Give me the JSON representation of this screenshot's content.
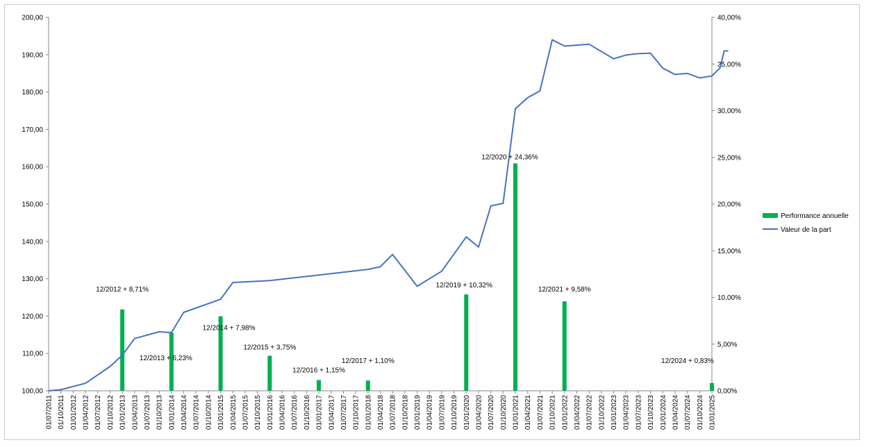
{
  "chart_data": {
    "type": "bar+line",
    "x_labels": [
      "01/07/2011",
      "01/10/2011",
      "01/01/2012",
      "01/04/2012",
      "01/07/2012",
      "01/10/2012",
      "01/01/2013",
      "01/04/2013",
      "01/07/2013",
      "01/10/2013",
      "01/01/2014",
      "01/04/2014",
      "01/07/2014",
      "01/10/2014",
      "01/01/2015",
      "01/04/2015",
      "01/07/2015",
      "01/10/2015",
      "01/01/2016",
      "01/04/2016",
      "01/07/2016",
      "01/10/2016",
      "01/01/2017",
      "01/04/2017",
      "01/07/2017",
      "01/10/2017",
      "01/01/2018",
      "01/04/2018",
      "01/07/2018",
      "01/10/2018",
      "01/01/2019",
      "01/04/2019",
      "01/07/2019",
      "01/10/2019",
      "01/01/2020",
      "01/04/2020",
      "01/07/2020",
      "01/10/2020",
      "01/01/2021",
      "01/04/2021",
      "01/07/2021",
      "01/10/2021",
      "01/01/2022",
      "01/04/2022",
      "01/07/2022",
      "01/10/2022",
      "01/01/2023",
      "01/04/2023",
      "01/07/2023",
      "01/10/2023",
      "01/01/2024",
      "01/04/2024",
      "01/07/2024",
      "01/10/2024",
      "01/01/2025"
    ],
    "y_left": {
      "min": 100,
      "max": 200,
      "step": 10,
      "ticks": [
        "100,00",
        "110,00",
        "120,00",
        "130,00",
        "140,00",
        "150,00",
        "160,00",
        "170,00",
        "180,00",
        "190,00",
        "200,00"
      ]
    },
    "y_right": {
      "min": 0,
      "max": 40,
      "step": 5,
      "ticks": [
        "0,00%",
        "5,00%",
        "10,00%",
        "15,00%",
        "20,00%",
        "25,00%",
        "30,00%",
        "35,00%",
        "40,00%"
      ]
    },
    "series": [
      {
        "name": "Performance annuelle",
        "type": "bar",
        "axis": "right",
        "color": "#00b050",
        "points": [
          {
            "x": "01/01/2013",
            "value": 8.71,
            "label": "12/2012 + 8,71%"
          },
          {
            "x": "01/01/2014",
            "value": 6.23,
            "label": "12/2013 + 6,23%"
          },
          {
            "x": "01/01/2015",
            "value": 7.98,
            "label": "12/2014 + 7,98%"
          },
          {
            "x": "01/01/2016",
            "value": 3.75,
            "label": "12/2015 + 3,75%"
          },
          {
            "x": "01/01/2017",
            "value": 1.15,
            "label": "12/2016 + 1,15%"
          },
          {
            "x": "01/01/2018",
            "value": 1.1,
            "label": "12/2017 + 1,10%"
          },
          {
            "x": "01/01/2020",
            "value": 10.32,
            "label": "12/2019 + 10,32%"
          },
          {
            "x": "01/01/2021",
            "value": 24.36,
            "label": "12/2020 + 24,36%"
          },
          {
            "x": "01/01/2022",
            "value": 9.58,
            "label": "12/2021 + 9,58%"
          },
          {
            "x": "01/01/2025",
            "value": 0.83,
            "label": "12/2024 + 0,83%"
          }
        ]
      },
      {
        "name": "Valeur de la part",
        "type": "line",
        "axis": "left",
        "color": "#4472c4",
        "points": [
          {
            "x": "01/07/2011",
            "value": 100.0
          },
          {
            "x": "01/10/2011",
            "value": 100.3
          },
          {
            "x": "01/04/2012",
            "value": 102.0
          },
          {
            "x": "01/10/2012",
            "value": 106.5
          },
          {
            "x": "01/01/2013",
            "value": 109.5
          },
          {
            "x": "01/04/2013",
            "value": 114.0
          },
          {
            "x": "01/10/2013",
            "value": 115.8
          },
          {
            "x": "01/01/2014",
            "value": 115.6
          },
          {
            "x": "01/04/2014",
            "value": 121.0
          },
          {
            "x": "01/01/2015",
            "value": 124.5
          },
          {
            "x": "01/04/2015",
            "value": 129.0
          },
          {
            "x": "01/01/2016",
            "value": 129.5
          },
          {
            "x": "01/01/2017",
            "value": 131.0
          },
          {
            "x": "01/01/2018",
            "value": 132.5
          },
          {
            "x": "01/04/2018",
            "value": 133.2
          },
          {
            "x": "01/07/2018",
            "value": 136.5
          },
          {
            "x": "01/01/2019",
            "value": 128.0
          },
          {
            "x": "01/07/2019",
            "value": 132.0
          },
          {
            "x": "01/01/2020",
            "value": 141.2
          },
          {
            "x": "01/04/2020",
            "value": 138.5
          },
          {
            "x": "01/07/2020",
            "value": 149.5
          },
          {
            "x": "01/10/2020",
            "value": 150.2
          },
          {
            "x": "01/01/2021",
            "value": 175.5
          },
          {
            "x": "01/04/2021",
            "value": 178.5
          },
          {
            "x": "01/07/2021",
            "value": 180.3
          },
          {
            "x": "01/10/2021",
            "value": 194.0
          },
          {
            "x": "01/01/2022",
            "value": 192.3
          },
          {
            "x": "01/07/2022",
            "value": 192.8
          },
          {
            "x": "01/01/2023",
            "value": 188.9
          },
          {
            "x": "01/04/2023",
            "value": 189.9
          },
          {
            "x": "01/07/2023",
            "value": 190.3
          },
          {
            "x": "01/10/2023",
            "value": 190.4
          },
          {
            "x": "01/01/2024",
            "value": 186.4
          },
          {
            "x": "01/04/2024",
            "value": 184.7
          },
          {
            "x": "01/07/2024",
            "value": 185.0
          },
          {
            "x": "01/10/2024",
            "value": 183.8
          },
          {
            "x": "01/01/2025",
            "value": 184.3
          },
          {
            "x": "01/03/2025",
            "value": 186.5
          },
          {
            "x": "01/04/2025",
            "value": 191.0
          },
          {
            "x": "01/05/2025",
            "value": 191.0
          }
        ]
      }
    ],
    "legend": {
      "placement": "right",
      "items": [
        "Performance annuelle",
        "Valeur de la part"
      ]
    },
    "grid": false,
    "title": ""
  }
}
